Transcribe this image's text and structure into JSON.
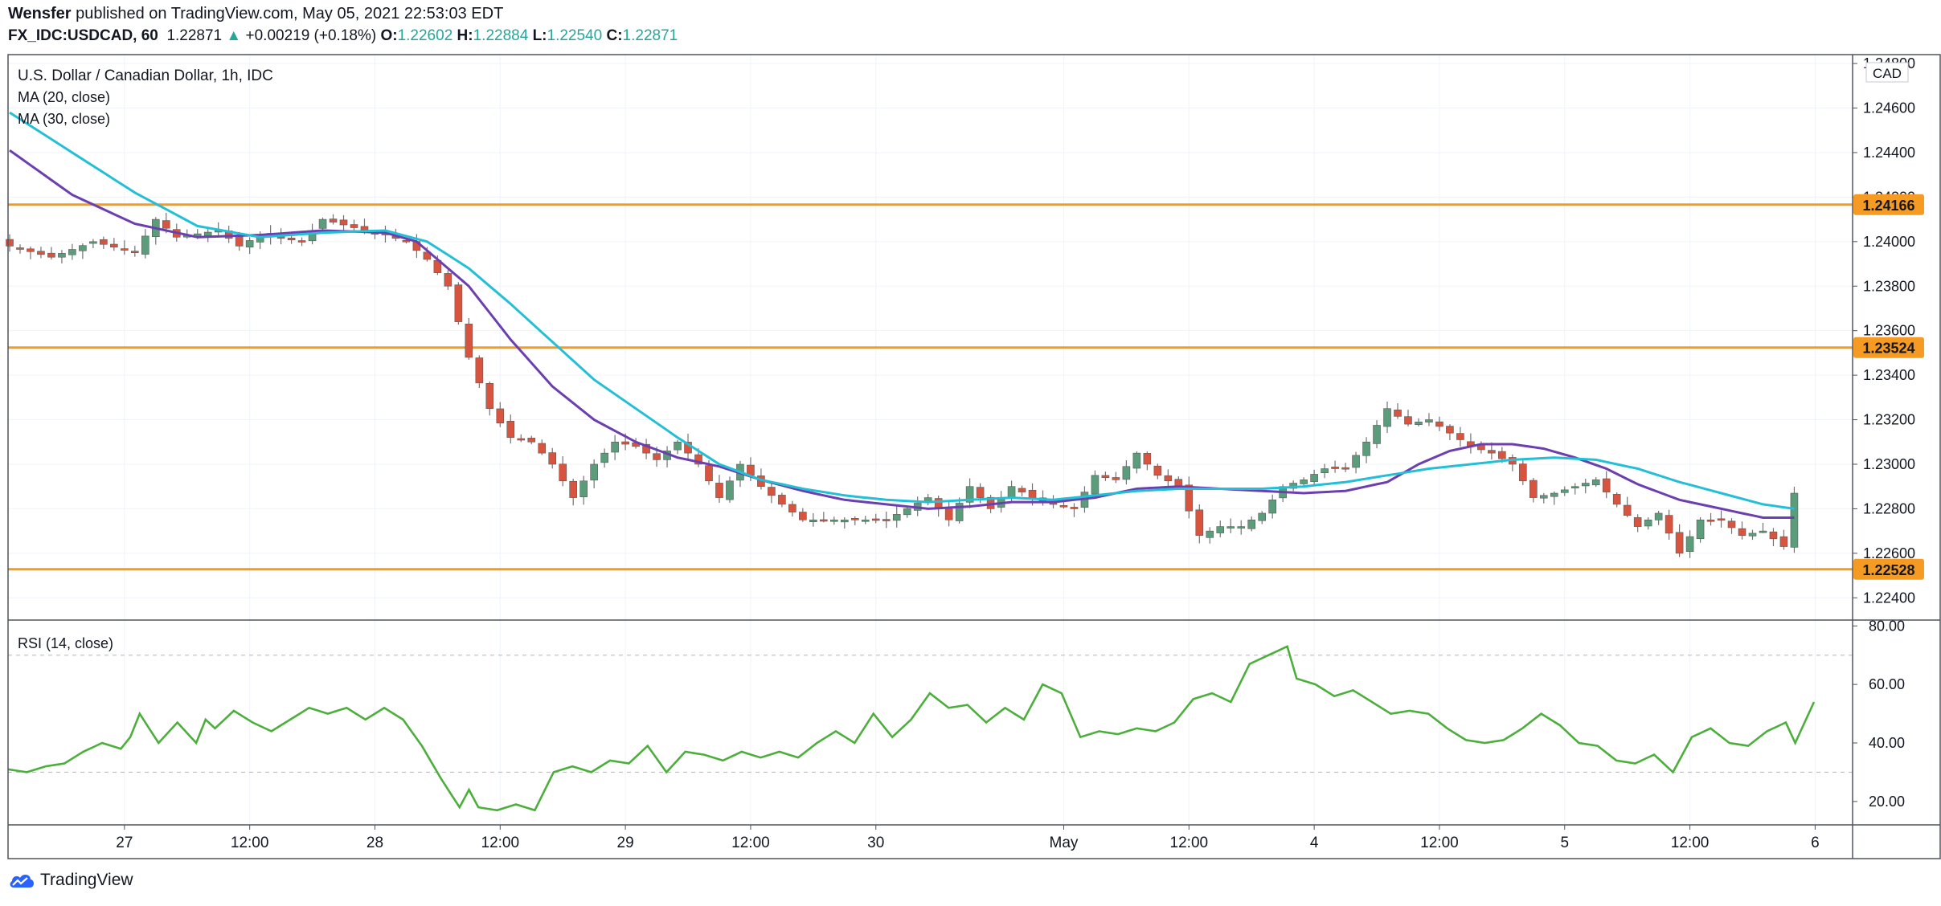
{
  "header": {
    "author": "Wensfer",
    "published_text": " published on TradingView.com, May 05, 2021 22:53:03 EDT",
    "symbol_line": "FX_IDC:USDCAD, 60",
    "last": "1.22871",
    "change": "+0.00219 (+0.18%)",
    "o_label": "O:",
    "o_value": "1.22602",
    "h_label": "H:",
    "h_value": "1.22884",
    "l_label": "L:",
    "l_value": "1.22540",
    "c_label": "C:",
    "c_value": "1.22871"
  },
  "legend": {
    "title": "U.S. Dollar / Canadian Dollar, 1h, IDC",
    "ma20": "MA (20, close)",
    "ma30": "MA (30, close)",
    "rsi": "RSI (14, close)"
  },
  "footer": {
    "brand": "TradingView"
  },
  "colors": {
    "up": "#5b9c7a",
    "down": "#d9543e",
    "wick": "#737375",
    "ma20": "#6b3fb0",
    "ma30": "#22bfd6",
    "rsi": "#4caf3c",
    "level": "#f59a23",
    "grid": "#f0f3fa",
    "axis": "#787b86"
  },
  "chart_data": {
    "type": "candlestick",
    "price_axis": {
      "currency": "CAD",
      "range": [
        1.223,
        1.2484
      ],
      "ticks": [
        "1.24800",
        "1.24600",
        "1.24400",
        "1.24200",
        "1.24000",
        "1.23800",
        "1.23600",
        "1.23400",
        "1.23200",
        "1.23000",
        "1.22800",
        "1.22600",
        "1.22400"
      ]
    },
    "time_axis": {
      "labels": [
        "27",
        "12:00",
        "28",
        "12:00",
        "29",
        "12:00",
        "30",
        "May",
        "12:00",
        "4",
        "12:00",
        "5",
        "12:00",
        "6"
      ],
      "label_bars": [
        11,
        23,
        35,
        47,
        59,
        71,
        83,
        101,
        113,
        125,
        137,
        149,
        161,
        173
      ]
    },
    "levels": [
      {
        "value": 1.24166,
        "label": "1.24166"
      },
      {
        "value": 1.23524,
        "label": "1.23524"
      },
      {
        "value": 1.22528,
        "label": "1.22528"
      }
    ],
    "anchors": [
      [
        0,
        1.2398
      ],
      [
        4,
        1.2393
      ],
      [
        8,
        1.24
      ],
      [
        12,
        1.2395
      ],
      [
        14,
        1.241
      ],
      [
        16,
        1.2402
      ],
      [
        20,
        1.2405
      ],
      [
        22,
        1.2398
      ],
      [
        24,
        1.2403
      ],
      [
        28,
        1.24
      ],
      [
        30,
        1.241
      ],
      [
        34,
        1.2405
      ],
      [
        36,
        1.2403
      ],
      [
        38,
        1.24
      ],
      [
        40,
        1.2392
      ],
      [
        42,
        1.238
      ],
      [
        44,
        1.2348
      ],
      [
        46,
        1.2325
      ],
      [
        48,
        1.2312
      ],
      [
        50,
        1.231
      ],
      [
        52,
        1.23
      ],
      [
        54,
        1.2285
      ],
      [
        56,
        1.23
      ],
      [
        58,
        1.231
      ],
      [
        60,
        1.2308
      ],
      [
        62,
        1.2302
      ],
      [
        64,
        1.231
      ],
      [
        66,
        1.23
      ],
      [
        68,
        1.2285
      ],
      [
        70,
        1.23
      ],
      [
        72,
        1.229
      ],
      [
        74,
        1.2282
      ],
      [
        76,
        1.2275
      ],
      [
        80,
        1.2275
      ],
      [
        84,
        1.2275
      ],
      [
        88,
        1.2285
      ],
      [
        90,
        1.2275
      ],
      [
        92,
        1.229
      ],
      [
        94,
        1.228
      ],
      [
        96,
        1.229
      ],
      [
        98,
        1.2285
      ],
      [
        100,
        1.2282
      ],
      [
        102,
        1.228
      ],
      [
        104,
        1.2295
      ],
      [
        106,
        1.2293
      ],
      [
        108,
        1.2305
      ],
      [
        110,
        1.2295
      ],
      [
        112,
        1.229
      ],
      [
        114,
        1.2268
      ],
      [
        116,
        1.2272
      ],
      [
        118,
        1.2272
      ],
      [
        120,
        1.2278
      ],
      [
        122,
        1.229
      ],
      [
        124,
        1.2293
      ],
      [
        126,
        1.2298
      ],
      [
        128,
        1.2298
      ],
      [
        130,
        1.231
      ],
      [
        132,
        1.2325
      ],
      [
        134,
        1.2318
      ],
      [
        136,
        1.232
      ],
      [
        138,
        1.2314
      ],
      [
        140,
        1.2308
      ],
      [
        142,
        1.2305
      ],
      [
        144,
        1.23
      ],
      [
        146,
        1.2285
      ],
      [
        148,
        1.2287
      ],
      [
        150,
        1.229
      ],
      [
        152,
        1.2293
      ],
      [
        154,
        1.2282
      ],
      [
        156,
        1.2272
      ],
      [
        158,
        1.2278
      ],
      [
        160,
        1.226
      ],
      [
        162,
        1.2275
      ],
      [
        164,
        1.2275
      ],
      [
        166,
        1.2268
      ],
      [
        168,
        1.227
      ],
      [
        170,
        1.2263
      ],
      [
        171,
        1.2287
      ]
    ],
    "ma20_anchors": [
      [
        0,
        1.2441
      ],
      [
        6,
        1.2421
      ],
      [
        12,
        1.2408
      ],
      [
        18,
        1.2402
      ],
      [
        24,
        1.2403
      ],
      [
        30,
        1.2405
      ],
      [
        36,
        1.2404
      ],
      [
        39,
        1.24
      ],
      [
        44,
        1.238
      ],
      [
        48,
        1.2356
      ],
      [
        52,
        1.2335
      ],
      [
        56,
        1.232
      ],
      [
        60,
        1.231
      ],
      [
        64,
        1.2303
      ],
      [
        68,
        1.2299
      ],
      [
        72,
        1.2293
      ],
      [
        76,
        1.2288
      ],
      [
        80,
        1.2284
      ],
      [
        84,
        1.2282
      ],
      [
        88,
        1.228
      ],
      [
        92,
        1.2281
      ],
      [
        96,
        1.2283
      ],
      [
        100,
        1.2283
      ],
      [
        104,
        1.2285
      ],
      [
        108,
        1.2289
      ],
      [
        112,
        1.229
      ],
      [
        116,
        1.2289
      ],
      [
        120,
        1.2288
      ],
      [
        124,
        1.2287
      ],
      [
        128,
        1.2288
      ],
      [
        132,
        1.2292
      ],
      [
        135,
        1.23
      ],
      [
        138,
        1.2306
      ],
      [
        141,
        1.2309
      ],
      [
        144,
        1.2309
      ],
      [
        147,
        1.2307
      ],
      [
        150,
        1.2303
      ],
      [
        153,
        1.2298
      ],
      [
        156,
        1.2291
      ],
      [
        160,
        1.2284
      ],
      [
        164,
        1.228
      ],
      [
        168,
        1.2276
      ],
      [
        171,
        1.2276
      ]
    ],
    "ma30_anchors": [
      [
        0,
        1.2458
      ],
      [
        6,
        1.244
      ],
      [
        12,
        1.2422
      ],
      [
        18,
        1.2407
      ],
      [
        24,
        1.2402
      ],
      [
        30,
        1.2404
      ],
      [
        36,
        1.2405
      ],
      [
        40,
        1.24
      ],
      [
        44,
        1.2388
      ],
      [
        48,
        1.2372
      ],
      [
        52,
        1.2355
      ],
      [
        56,
        1.2338
      ],
      [
        60,
        1.2325
      ],
      [
        64,
        1.2312
      ],
      [
        68,
        1.23
      ],
      [
        72,
        1.2293
      ],
      [
        76,
        1.2289
      ],
      [
        80,
        1.2286
      ],
      [
        84,
        1.2284
      ],
      [
        88,
        1.2283
      ],
      [
        92,
        1.2284
      ],
      [
        96,
        1.2285
      ],
      [
        100,
        1.2284
      ],
      [
        104,
        1.2286
      ],
      [
        108,
        1.2288
      ],
      [
        112,
        1.2289
      ],
      [
        116,
        1.2289
      ],
      [
        120,
        1.2289
      ],
      [
        124,
        1.229
      ],
      [
        128,
        1.2292
      ],
      [
        132,
        1.2295
      ],
      [
        136,
        1.2298
      ],
      [
        140,
        1.23
      ],
      [
        144,
        1.2302
      ],
      [
        148,
        1.2303
      ],
      [
        152,
        1.2302
      ],
      [
        156,
        1.2298
      ],
      [
        160,
        1.2292
      ],
      [
        164,
        1.2287
      ],
      [
        168,
        1.2282
      ],
      [
        171,
        1.228
      ]
    ],
    "rsi": {
      "range": [
        12,
        82
      ],
      "ticks": [
        "80.00",
        "60.00",
        "40.00",
        "20.00"
      ],
      "levels": [
        70,
        30
      ],
      "anchors": [
        [
          0,
          31
        ],
        [
          2,
          30
        ],
        [
          4,
          32
        ],
        [
          6,
          33
        ],
        [
          8,
          37
        ],
        [
          10,
          40
        ],
        [
          12,
          38
        ],
        [
          13,
          42
        ],
        [
          14,
          50
        ],
        [
          16,
          40
        ],
        [
          18,
          47
        ],
        [
          20,
          40
        ],
        [
          21,
          48
        ],
        [
          22,
          45
        ],
        [
          24,
          51
        ],
        [
          26,
          47
        ],
        [
          28,
          44
        ],
        [
          30,
          48
        ],
        [
          32,
          52
        ],
        [
          34,
          50
        ],
        [
          36,
          52
        ],
        [
          38,
          48
        ],
        [
          40,
          52
        ],
        [
          42,
          48
        ],
        [
          44,
          39
        ],
        [
          46,
          28
        ],
        [
          48,
          18
        ],
        [
          49,
          24
        ],
        [
          50,
          18
        ],
        [
          52,
          17
        ],
        [
          54,
          19
        ],
        [
          56,
          17
        ],
        [
          58,
          30
        ],
        [
          60,
          32
        ],
        [
          62,
          30
        ],
        [
          64,
          34
        ],
        [
          66,
          33
        ],
        [
          68,
          39
        ],
        [
          70,
          30
        ],
        [
          72,
          37
        ],
        [
          74,
          36
        ],
        [
          76,
          34
        ],
        [
          78,
          37
        ],
        [
          80,
          35
        ],
        [
          82,
          37
        ],
        [
          84,
          35
        ],
        [
          86,
          40
        ],
        [
          88,
          44
        ],
        [
          90,
          40
        ],
        [
          92,
          50
        ],
        [
          94,
          42
        ],
        [
          96,
          48
        ],
        [
          98,
          57
        ],
        [
          100,
          52
        ],
        [
          102,
          53
        ],
        [
          104,
          47
        ],
        [
          106,
          52
        ],
        [
          108,
          48
        ],
        [
          110,
          60
        ],
        [
          112,
          57
        ],
        [
          114,
          42
        ],
        [
          116,
          44
        ],
        [
          118,
          43
        ],
        [
          120,
          45
        ],
        [
          122,
          44
        ],
        [
          124,
          47
        ],
        [
          126,
          55
        ],
        [
          128,
          57
        ],
        [
          130,
          54
        ],
        [
          132,
          67
        ],
        [
          134,
          70
        ],
        [
          136,
          73
        ],
        [
          137,
          62
        ],
        [
          139,
          60
        ],
        [
          141,
          56
        ],
        [
          143,
          58
        ],
        [
          145,
          54
        ],
        [
          147,
          50
        ],
        [
          149,
          51
        ],
        [
          151,
          50
        ],
        [
          153,
          45
        ],
        [
          155,
          41
        ],
        [
          157,
          40
        ],
        [
          159,
          41
        ],
        [
          161,
          45
        ],
        [
          163,
          50
        ],
        [
          165,
          46
        ],
        [
          167,
          40
        ],
        [
          169,
          39
        ],
        [
          171,
          34
        ],
        [
          173,
          33
        ],
        [
          175,
          36
        ],
        [
          177,
          30
        ],
        [
          179,
          42
        ],
        [
          181,
          45
        ],
        [
          183,
          40
        ],
        [
          185,
          39
        ],
        [
          187,
          44
        ],
        [
          189,
          47
        ],
        [
          190,
          40
        ],
        [
          192,
          54
        ]
      ]
    }
  }
}
